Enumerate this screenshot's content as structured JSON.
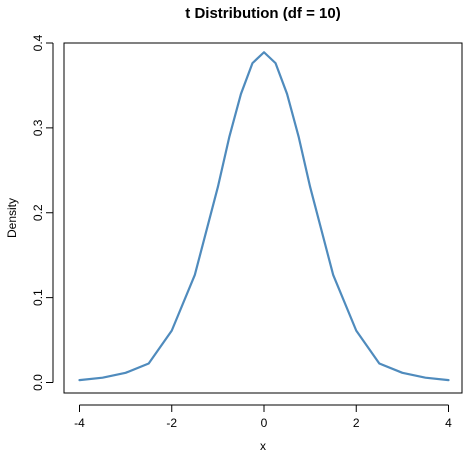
{
  "chart_data": {
    "type": "line",
    "title": "t Distribution (df = 10)",
    "xlabel": "x",
    "ylabel": "Density",
    "xlim": [
      -4,
      4
    ],
    "ylim": [
      0,
      0.4
    ],
    "x_ticks": [
      -4,
      -2,
      0,
      2,
      4
    ],
    "x_tick_labels": [
      "-4",
      "-2",
      "0",
      "2",
      "4"
    ],
    "y_ticks": [
      0,
      0.1,
      0.2,
      0.3,
      0.4
    ],
    "y_tick_labels": [
      "0.0",
      "0.1",
      "0.2",
      "0.3",
      "0.4"
    ],
    "grid": false,
    "series": [
      {
        "color": "#4f8bbd",
        "df": 10,
        "x": [
          -4,
          -3.5,
          -3,
          -2.5,
          -2,
          -1.5,
          -1,
          -0.75,
          -0.5,
          -0.25,
          0,
          0.25,
          0.5,
          0.75,
          1,
          1.5,
          2,
          2.5,
          3,
          3.5,
          4
        ],
        "y": [
          0.0028,
          0.0057,
          0.0114,
          0.0224,
          0.0611,
          0.1267,
          0.2304,
          0.2898,
          0.34,
          0.3763,
          0.3891,
          0.3763,
          0.34,
          0.2898,
          0.2304,
          0.1267,
          0.0611,
          0.0224,
          0.0114,
          0.0057,
          0.0028
        ]
      }
    ]
  }
}
